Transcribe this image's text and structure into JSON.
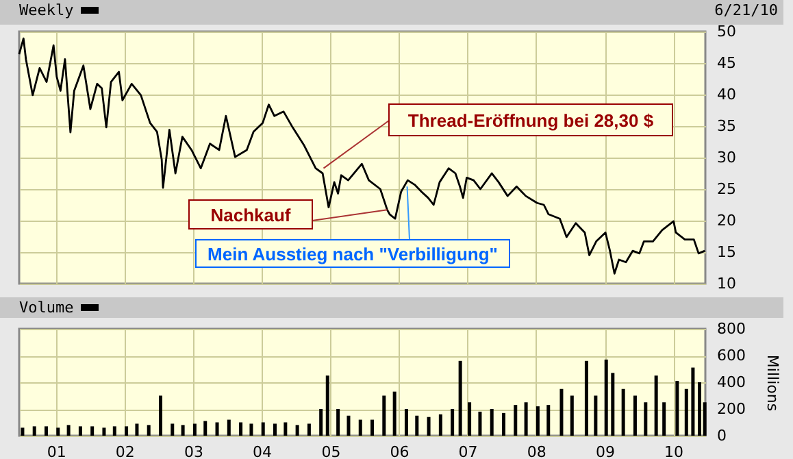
{
  "chart_data": [
    {
      "type": "line",
      "title": "Weekly",
      "color": "#000000",
      "x": [
        "2000-06-19",
        "2000-07-12",
        "2000-07-25",
        "2000-08-30",
        "2000-10-06",
        "2000-11-12",
        "2000-12-19",
        "2001-01-05",
        "2001-01-25",
        "2001-02-18",
        "2001-03-19",
        "2001-04-08",
        "2001-05-27",
        "2001-07-03",
        "2001-08-08",
        "2001-09-02",
        "2001-09-26",
        "2001-10-21",
        "2001-12-02",
        "2001-12-21",
        "2002-02-08",
        "2002-03-29",
        "2002-05-17",
        "2002-06-23",
        "2002-07-18",
        "2002-07-25",
        "2002-08-28",
        "2002-09-29",
        "2002-11-05",
        "2002-12-24",
        "2003-02-11",
        "2003-04-01",
        "2003-05-20",
        "2003-06-25",
        "2003-08-13",
        "2003-10-14",
        "2003-11-19",
        "2004-01-07",
        "2004-02-08",
        "2004-03-09",
        "2004-04-27",
        "2004-06-14",
        "2004-08-15",
        "2004-10-15",
        "2004-11-21",
        "2004-12-23",
        "2005-01-22",
        "2005-02-11",
        "2005-02-28",
        "2005-04-06",
        "2005-06-18",
        "2005-07-25",
        "2005-09-24",
        "2005-10-31",
        "2005-11-13",
        "2005-12-12",
        "2006-01-13",
        "2006-02-17",
        "2006-03-26",
        "2006-05-01",
        "2006-06-06",
        "2006-07-05",
        "2006-08-06",
        "2006-09-23",
        "2006-10-29",
        "2006-11-22",
        "2006-12-09",
        "2006-12-28",
        "2007-02-03",
        "2007-03-11",
        "2007-05-11",
        "2007-06-16",
        "2007-08-03",
        "2007-09-20",
        "2007-11-08",
        "2008-01-07",
        "2008-02-12",
        "2008-03-08",
        "2008-05-07",
        "2008-06-12",
        "2008-07-31",
        "2008-09-17",
        "2008-10-11",
        "2008-11-17",
        "2009-01-05",
        "2009-01-29",
        "2009-02-22",
        "2009-03-18",
        "2009-04-24",
        "2009-05-30",
        "2009-07-05",
        "2009-07-29",
        "2009-09-15",
        "2009-11-03",
        "2010-01-03",
        "2010-01-15",
        "2010-03-04",
        "2010-04-21",
        "2010-05-16",
        "2010-06-18"
      ],
      "values": [
        46.4,
        48.9,
        45.6,
        39.9,
        44.2,
        42.0,
        47.8,
        42.8,
        40.6,
        45.6,
        34.0,
        40.6,
        44.6,
        37.7,
        41.7,
        41.0,
        34.8,
        42.0,
        43.6,
        39.1,
        41.7,
        39.9,
        35.5,
        34.1,
        29.7,
        25.2,
        34.4,
        27.5,
        33.3,
        31.2,
        28.3,
        32.2,
        31.2,
        36.6,
        30.1,
        31.2,
        34.1,
        35.5,
        38.4,
        36.6,
        37.3,
        34.8,
        31.9,
        28.3,
        27.5,
        22.1,
        26.1,
        24.3,
        27.2,
        26.4,
        29.0,
        26.4,
        25.0,
        21.7,
        21.0,
        20.3,
        24.6,
        26.4,
        25.7,
        24.6,
        23.6,
        22.5,
        26.1,
        28.3,
        27.5,
        25.4,
        23.6,
        26.8,
        26.4,
        25.0,
        27.5,
        26.1,
        23.9,
        25.4,
        23.9,
        22.8,
        22.5,
        21.0,
        20.3,
        17.4,
        19.6,
        18.1,
        14.5,
        16.7,
        18.1,
        15.2,
        11.6,
        13.8,
        13.4,
        15.2,
        14.8,
        16.7,
        16.7,
        18.5,
        19.9,
        18.1,
        17.0,
        17.0,
        14.8,
        15.2
      ],
      "xlim": [
        "2000-06-19",
        "2010-06-21"
      ],
      "xticks": [
        {
          "value": "2001-01-01",
          "label": null
        },
        {
          "value": "2002-01-01",
          "label": null
        },
        {
          "value": "2003-01-01",
          "label": null
        },
        {
          "value": "2004-01-01",
          "label": null
        },
        {
          "value": "2005-01-01",
          "label": null
        },
        {
          "value": "2006-01-01",
          "label": null
        },
        {
          "value": "2007-01-01",
          "label": null
        },
        {
          "value": "2008-01-01",
          "label": null
        },
        {
          "value": "2009-01-01",
          "label": null
        },
        {
          "value": "2010-01-01",
          "label": null
        }
      ],
      "ylim": [
        10,
        50
      ],
      "yticks": [
        10,
        15,
        20,
        25,
        30,
        35,
        40,
        45,
        50
      ],
      "grid": true,
      "tick_labels": "y",
      "annotations": [
        {
          "text": "Thread-Eröffnung bei 28,30 $",
          "x": "2004-11-26",
          "y": 28.3
        },
        {
          "text": "Nachkauf",
          "x": "2005-10-31",
          "y": 21.7
        },
        {
          "text": "Mein Ausstieg nach \"Verbilligung\"",
          "x": "2006-02-14",
          "y": 25.4
        },
        "6/21/10"
      ]
    },
    {
      "type": "bar",
      "title": "Volume",
      "color": "#000000",
      "ylabel": "Millions",
      "x": [
        "2000-07-07",
        "2000-09-08",
        "2000-11-10",
        "2001-01-12",
        "2001-03-09",
        "2001-05-11",
        "2001-07-13",
        "2001-09-14",
        "2001-11-09",
        "2002-01-11",
        "2002-03-08",
        "2002-05-10",
        "2002-07-12",
        "2002-09-13",
        "2002-11-08",
        "2003-01-10",
        "2003-03-07",
        "2003-05-09",
        "2003-07-11",
        "2003-09-12",
        "2003-11-07",
        "2004-01-09",
        "2004-03-12",
        "2004-05-07",
        "2004-07-09",
        "2004-09-10",
        "2004-11-12",
        "2004-12-17",
        "2005-02-11",
        "2005-04-08",
        "2005-06-10",
        "2005-08-12",
        "2005-10-14",
        "2005-12-09",
        "2006-02-10",
        "2006-04-07",
        "2006-06-09",
        "2006-08-11",
        "2006-10-13",
        "2006-11-24",
        "2007-01-12",
        "2007-03-09",
        "2007-05-11",
        "2007-07-13",
        "2007-09-14",
        "2007-11-09",
        "2008-01-11",
        "2008-03-07",
        "2008-05-16",
        "2008-07-11",
        "2008-09-26",
        "2008-11-14",
        "2009-01-09",
        "2009-02-13",
        "2009-04-10",
        "2009-06-12",
        "2009-08-07",
        "2009-10-02",
        "2009-11-13",
        "2010-01-22",
        "2010-03-12",
        "2010-04-16",
        "2010-05-21",
        "2010-06-18"
      ],
      "values": [
        60,
        70,
        70,
        60,
        80,
        70,
        70,
        60,
        70,
        70,
        90,
        80,
        300,
        90,
        80,
        90,
        110,
        100,
        120,
        100,
        90,
        100,
        90,
        100,
        80,
        90,
        200,
        450,
        200,
        150,
        120,
        120,
        300,
        330,
        200,
        150,
        140,
        160,
        200,
        560,
        250,
        180,
        200,
        170,
        230,
        250,
        220,
        230,
        350,
        300,
        560,
        300,
        570,
        470,
        350,
        300,
        250,
        450,
        250,
        410,
        350,
        510,
        400,
        250
      ],
      "xlim": [
        "2000-06-19",
        "2010-06-21"
      ],
      "xticks": [
        {
          "value": "2001-01-01",
          "label": "01"
        },
        {
          "value": "2002-01-01",
          "label": "02"
        },
        {
          "value": "2003-01-01",
          "label": "03"
        },
        {
          "value": "2004-01-01",
          "label": "04"
        },
        {
          "value": "2005-01-01",
          "label": "05"
        },
        {
          "value": "2006-01-01",
          "label": "06"
        },
        {
          "value": "2007-01-01",
          "label": "07"
        },
        {
          "value": "2008-01-01",
          "label": "08"
        },
        {
          "value": "2009-01-01",
          "label": "09"
        },
        {
          "value": "2010-01-01",
          "label": "10"
        }
      ],
      "ylim": [
        0,
        800
      ],
      "yticks": [
        0,
        200,
        400,
        600,
        800
      ],
      "grid": true
    }
  ]
}
